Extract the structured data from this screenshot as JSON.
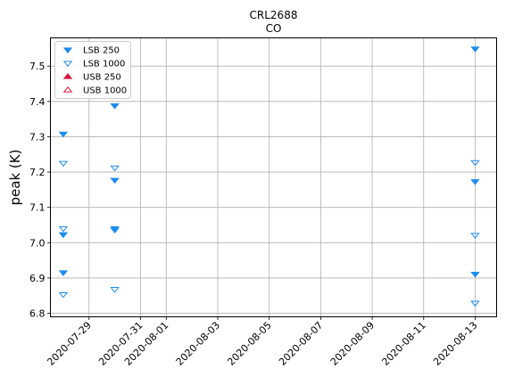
{
  "chart_data": {
    "type": "scatter",
    "title": "CRL2688",
    "subtitle": "CO",
    "xlabel": "",
    "ylabel": "peak (K)",
    "xlim": [
      "2020-07-27T12:00",
      "2020-08-13T20:00"
    ],
    "ylim": [
      6.79,
      7.58
    ],
    "yticks": [
      "6.8",
      "6.9",
      "7.0",
      "7.1",
      "7.2",
      "7.3",
      "7.4",
      "7.5"
    ],
    "xticks": [
      "2020-07-29",
      "2020-07-31",
      "2020-08-01",
      "2020-08-03",
      "2020-08-05",
      "2020-08-07",
      "2020-08-09",
      "2020-08-11",
      "2020-08-13"
    ],
    "grid": true,
    "legend_position": "top-left",
    "series": [
      {
        "name": "LSB 250",
        "marker": "triangle-down-filled",
        "color": "#1f8ded",
        "points": [
          {
            "x": "2020-07-28",
            "y": 7.308
          },
          {
            "x": "2020-07-28",
            "y": 7.023
          },
          {
            "x": "2020-07-28",
            "y": 6.915
          },
          {
            "x": "2020-07-30",
            "y": 7.388
          },
          {
            "x": "2020-07-30",
            "y": 7.177
          },
          {
            "x": "2020-07-30",
            "y": 7.04
          },
          {
            "x": "2020-07-30",
            "y": 7.036
          },
          {
            "x": "2020-08-13",
            "y": 7.549
          },
          {
            "x": "2020-08-13",
            "y": 7.173
          },
          {
            "x": "2020-08-13",
            "y": 6.911
          }
        ]
      },
      {
        "name": "LSB 1000",
        "marker": "triangle-down-open",
        "color": "#1f8ded",
        "points": [
          {
            "x": "2020-07-28",
            "y": 7.225
          },
          {
            "x": "2020-07-28",
            "y": 7.04
          },
          {
            "x": "2020-07-28",
            "y": 6.853
          },
          {
            "x": "2020-07-30",
            "y": 7.212
          },
          {
            "x": "2020-07-30",
            "y": 6.868
          },
          {
            "x": "2020-08-13",
            "y": 7.227
          },
          {
            "x": "2020-08-13",
            "y": 7.021
          },
          {
            "x": "2020-08-13",
            "y": 6.829
          }
        ]
      },
      {
        "name": "USB 250",
        "marker": "triangle-up-filled",
        "color": "#dc143c",
        "points": []
      },
      {
        "name": "USB 1000",
        "marker": "triangle-up-open",
        "color": "#dc143c",
        "points": []
      }
    ]
  }
}
